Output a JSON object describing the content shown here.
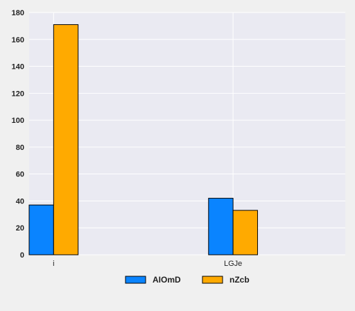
{
  "chart_data": {
    "type": "bar",
    "categories": [
      "i",
      "LGJe"
    ],
    "series": [
      {
        "name": "AIOmD",
        "values": [
          37,
          42
        ],
        "color": "#0a84ff"
      },
      {
        "name": "nZcb",
        "values": [
          171,
          33
        ],
        "color": "#ffaa00"
      }
    ],
    "ylim": [
      0,
      180
    ],
    "yticks": [
      0,
      20,
      40,
      60,
      80,
      100,
      120,
      140,
      160,
      180
    ],
    "grid": true,
    "legend_position": "bottom-center",
    "plot_background": "#eaeaf2",
    "page_background": "#f0f0f0"
  }
}
